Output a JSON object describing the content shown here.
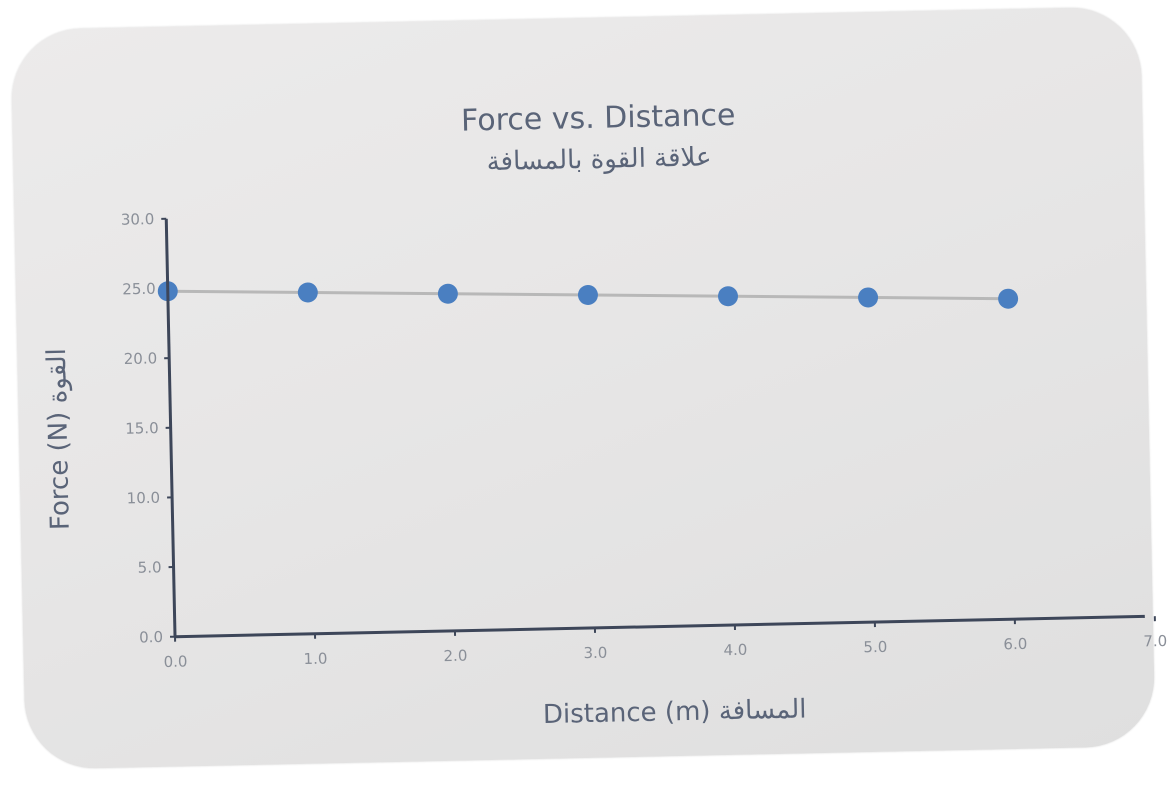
{
  "chart_data": {
    "type": "line",
    "title": "Force vs. Distance",
    "subtitle": "علاقة القوة بالمسافة",
    "xlabel": "Distance (m) المسافة",
    "ylabel": "Force (N) القوة",
    "xlim": [
      0,
      7
    ],
    "ylim": [
      0,
      30
    ],
    "x_ticks": [
      "0.0",
      "1.0",
      "2.0",
      "3.0",
      "4.0",
      "5.0",
      "6.0",
      "7.0"
    ],
    "y_ticks": [
      "0.0",
      "5.0",
      "10.0",
      "15.0",
      "20.0",
      "25.0",
      "30.0"
    ],
    "grid": false,
    "series": [
      {
        "x": [
          0,
          1,
          2,
          3,
          4,
          5,
          6
        ],
        "y": [
          24.8,
          24.5,
          24.2,
          23.9,
          23.6,
          23.3,
          23.0
        ],
        "color": "#4a7fc1"
      }
    ],
    "trendline_color": "#b8b8b8"
  }
}
